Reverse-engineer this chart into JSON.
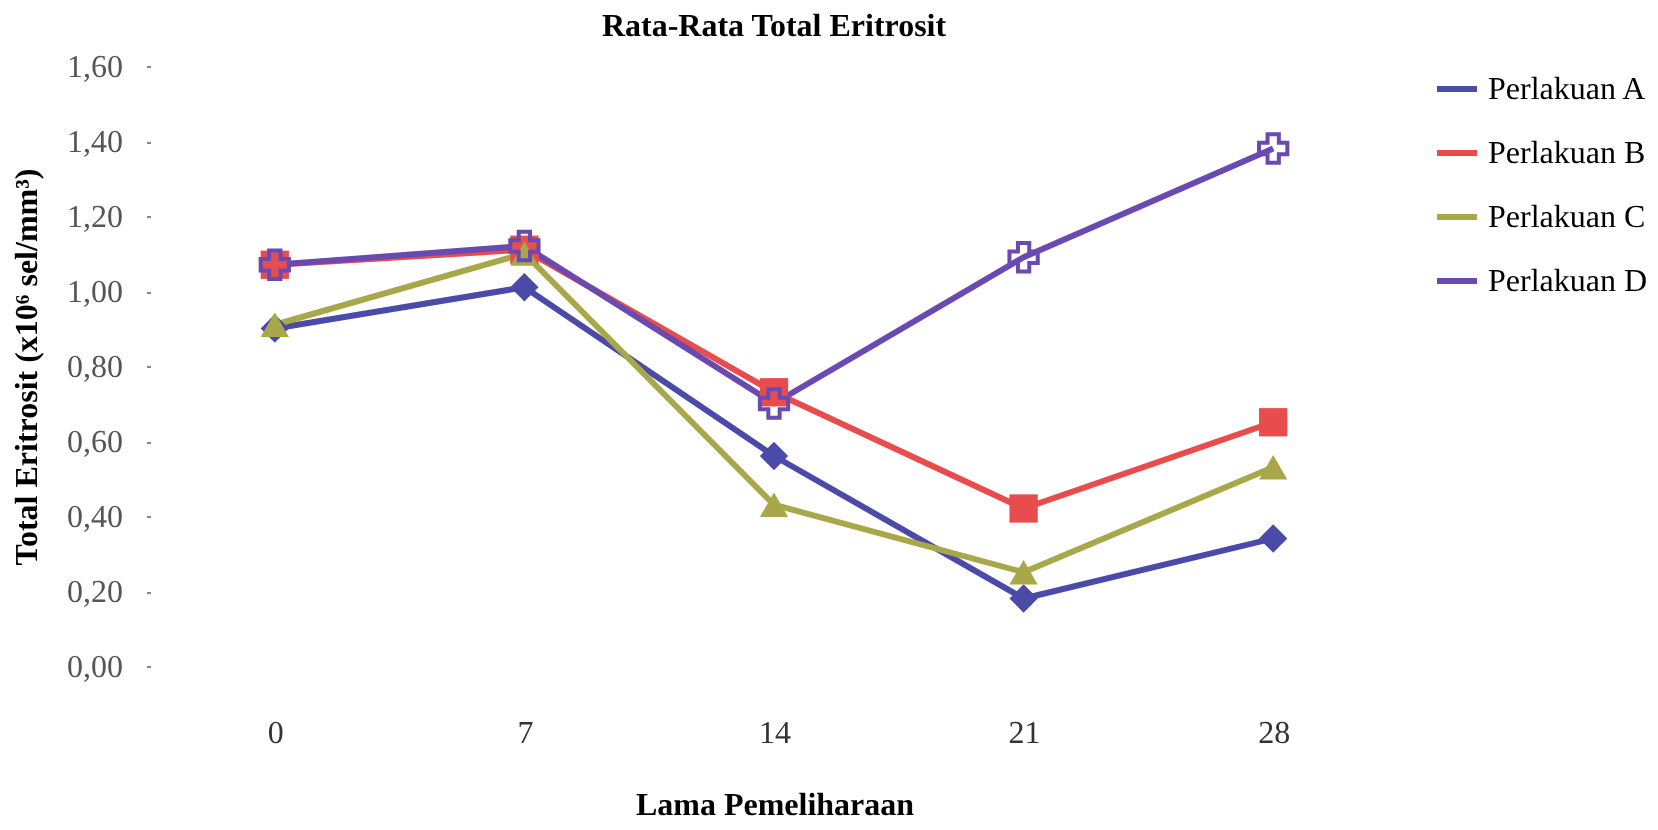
{
  "chart_data": {
    "type": "line",
    "title": "Rata-Rata Total Eritrosit",
    "xlabel": "Lama Pemeliharaan",
    "ylabel": "Total Eritrosit (x10⁶ sel/mm³)",
    "categories": [
      "0",
      "7",
      "14",
      "21",
      "28"
    ],
    "ylim": [
      0,
      1.6
    ],
    "yticks": [
      {
        "value": 0,
        "label": "0,00"
      },
      {
        "value": 0.2,
        "label": "0,20"
      },
      {
        "value": 0.4,
        "label": "0,40"
      },
      {
        "value": 0.6,
        "label": "0,60"
      },
      {
        "value": 0.8,
        "label": "0,80"
      },
      {
        "value": 1.0,
        "label": "1,00"
      },
      {
        "value": 1.2,
        "label": "1,20"
      },
      {
        "value": 1.4,
        "label": "1,40"
      },
      {
        "value": 1.6,
        "label": "1,60"
      }
    ],
    "grid": false,
    "legend": "right",
    "line_style": "solid",
    "series": [
      {
        "name": "Perlakuan A",
        "color": "#4a4aa8",
        "marker": "diamond",
        "values": [
          0.9,
          1.01,
          0.56,
          0.18,
          0.34
        ]
      },
      {
        "name": "Perlakuan B",
        "color": "#e84c4c",
        "marker": "square",
        "values": [
          1.07,
          1.11,
          0.73,
          0.42,
          0.65
        ]
      },
      {
        "name": "Perlakuan C",
        "color": "#a8a84a",
        "marker": "triangle",
        "values": [
          0.91,
          1.1,
          0.43,
          0.25,
          0.53
        ]
      },
      {
        "name": "Perlakuan D",
        "color": "#6a4ab0",
        "marker": "cross",
        "values": [
          1.07,
          1.12,
          0.7,
          1.09,
          1.38
        ]
      }
    ]
  }
}
